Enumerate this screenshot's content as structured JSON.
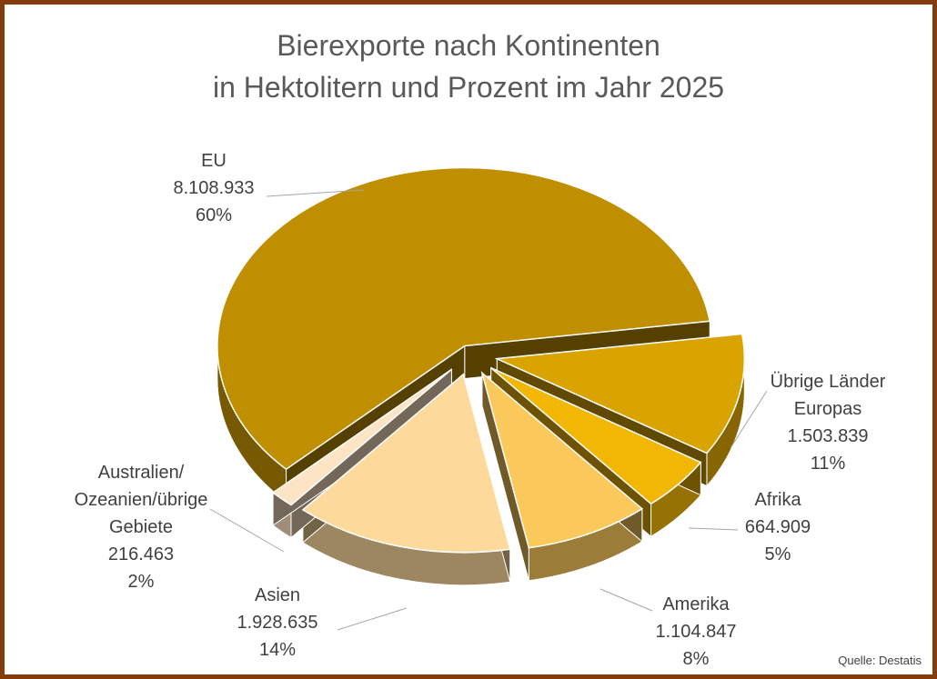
{
  "chart_data": {
    "type": "pie",
    "title": "Bierexporte nach Kontinenten\nin Hektolitern und Prozent im Jahr 2025",
    "categories": [
      "EU",
      "Übrige Länder\nEuropas",
      "Afrika",
      "Amerika",
      "Asien",
      "Australien/\nOzeanien/übrige\nGebiete"
    ],
    "values": [
      8108933,
      1503839,
      664909,
      1104847,
      1928635,
      216463
    ],
    "value_labels": [
      "8.108.933",
      "1.503.839",
      "664.909",
      "1.104.847",
      "1.928.635",
      "216.463"
    ],
    "percentages": [
      60,
      11,
      5,
      8,
      14,
      2
    ],
    "percentage_labels": [
      "60%",
      "11%",
      "5%",
      "8%",
      "14%",
      "2%"
    ],
    "colors": [
      "#bf8f00",
      "#d9a300",
      "#f2b705",
      "#fbc85c",
      "#fdd99c",
      "#fde4c4"
    ],
    "source": "Quelle: Destatis"
  }
}
